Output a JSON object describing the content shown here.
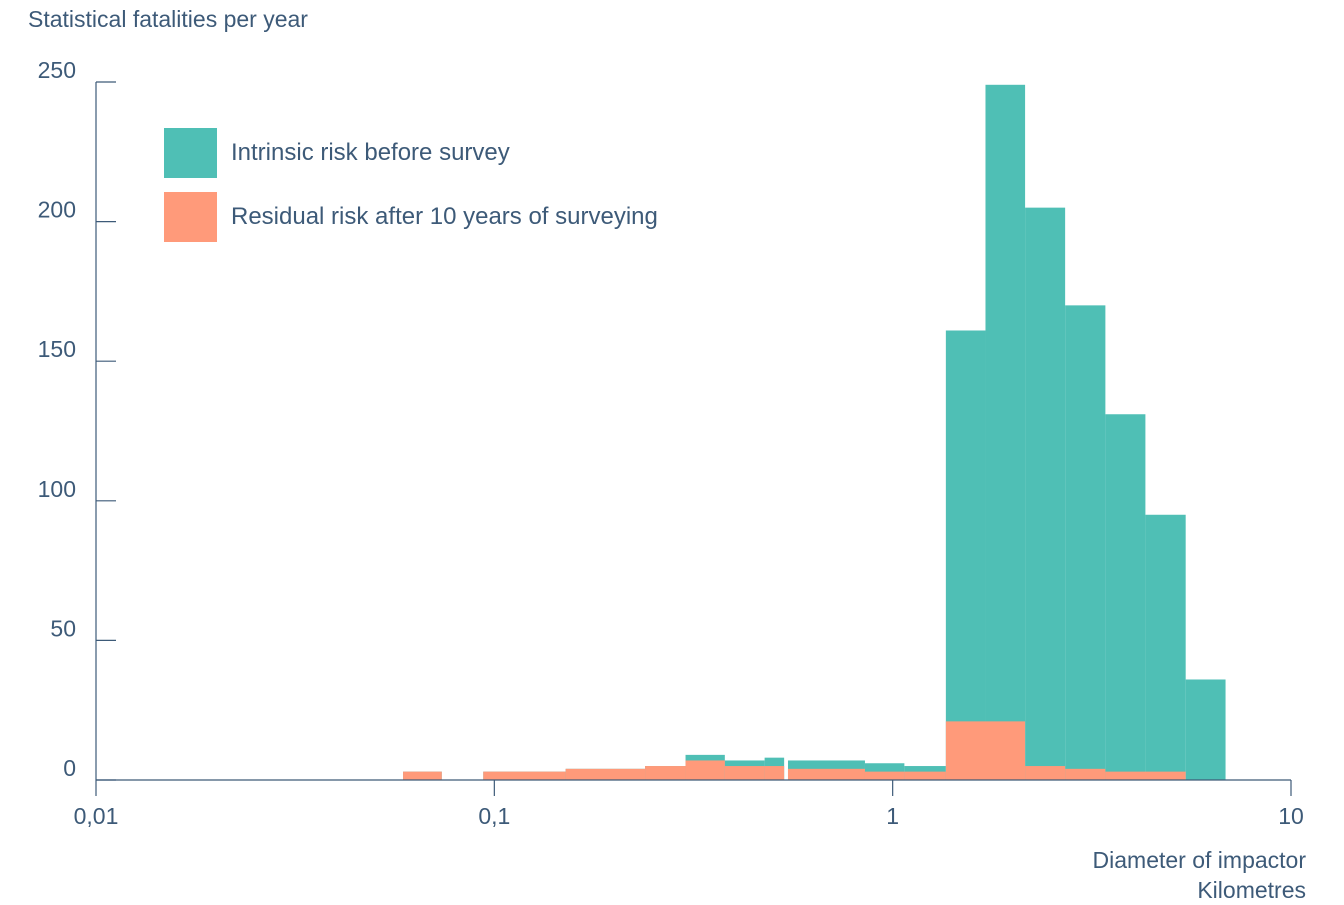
{
  "chart_data": {
    "type": "bar",
    "title": "",
    "ylabel": "Statistical fatalities per year",
    "xlabel_line1": "Diameter of impactor",
    "xlabel_line2": "Kilometres",
    "xscale": "log",
    "xlim": [
      0.01,
      10
    ],
    "ylim": [
      0,
      250
    ],
    "xticks": [
      {
        "value": 0.01,
        "label": "0,01"
      },
      {
        "value": 0.1,
        "label": "0,1"
      },
      {
        "value": 1,
        "label": "1"
      },
      {
        "value": 10,
        "label": "10"
      }
    ],
    "yticks": [
      {
        "value": 0,
        "label": "0"
      },
      {
        "value": 50,
        "label": "50"
      },
      {
        "value": 100,
        "label": "100"
      },
      {
        "value": 150,
        "label": "150"
      },
      {
        "value": 200,
        "label": "200"
      },
      {
        "value": 250,
        "label": "250"
      }
    ],
    "grid": false,
    "legend_position": "top-left",
    "series": [
      {
        "name": "Intrinsic risk before survey",
        "color": "#4fbfb5",
        "bins": [
          {
            "x0": 0.059,
            "x1": 0.0738,
            "value": 3
          },
          {
            "x0": 0.0938,
            "x1": 0.151,
            "value": 3
          },
          {
            "x0": 0.151,
            "x1": 0.239,
            "value": 4
          },
          {
            "x0": 0.239,
            "x1": 0.302,
            "value": 5
          },
          {
            "x0": 0.302,
            "x1": 0.379,
            "value": 9
          },
          {
            "x0": 0.379,
            "x1": 0.477,
            "value": 7
          },
          {
            "x0": 0.477,
            "x1": 0.534,
            "value": 8
          },
          {
            "x0": 0.546,
            "x1": 0.852,
            "value": 7
          },
          {
            "x0": 0.852,
            "x1": 1.07,
            "value": 6
          },
          {
            "x0": 1.07,
            "x1": 1.36,
            "value": 5
          },
          {
            "x0": 1.36,
            "x1": 1.71,
            "value": 161
          },
          {
            "x0": 1.71,
            "x1": 2.15,
            "value": 249
          },
          {
            "x0": 2.15,
            "x1": 2.71,
            "value": 205
          },
          {
            "x0": 2.71,
            "x1": 3.42,
            "value": 170
          },
          {
            "x0": 3.42,
            "x1": 4.31,
            "value": 131
          },
          {
            "x0": 4.31,
            "x1": 5.44,
            "value": 95
          },
          {
            "x0": 5.44,
            "x1": 6.85,
            "value": 36
          }
        ]
      },
      {
        "name": "Residual risk after 10 years of surveying",
        "color": "#ff9a7a",
        "bins": [
          {
            "x0": 0.059,
            "x1": 0.0738,
            "value": 3
          },
          {
            "x0": 0.0938,
            "x1": 0.151,
            "value": 3
          },
          {
            "x0": 0.151,
            "x1": 0.239,
            "value": 4
          },
          {
            "x0": 0.239,
            "x1": 0.302,
            "value": 5
          },
          {
            "x0": 0.302,
            "x1": 0.379,
            "value": 7
          },
          {
            "x0": 0.379,
            "x1": 0.477,
            "value": 5
          },
          {
            "x0": 0.477,
            "x1": 0.534,
            "value": 5
          },
          {
            "x0": 0.546,
            "x1": 0.852,
            "value": 4
          },
          {
            "x0": 0.852,
            "x1": 1.07,
            "value": 3
          },
          {
            "x0": 1.07,
            "x1": 1.36,
            "value": 3
          },
          {
            "x0": 1.36,
            "x1": 2.15,
            "value": 21
          },
          {
            "x0": 2.15,
            "x1": 2.71,
            "value": 5
          },
          {
            "x0": 2.71,
            "x1": 3.42,
            "value": 4
          },
          {
            "x0": 3.42,
            "x1": 5.44,
            "value": 3
          }
        ]
      }
    ]
  }
}
